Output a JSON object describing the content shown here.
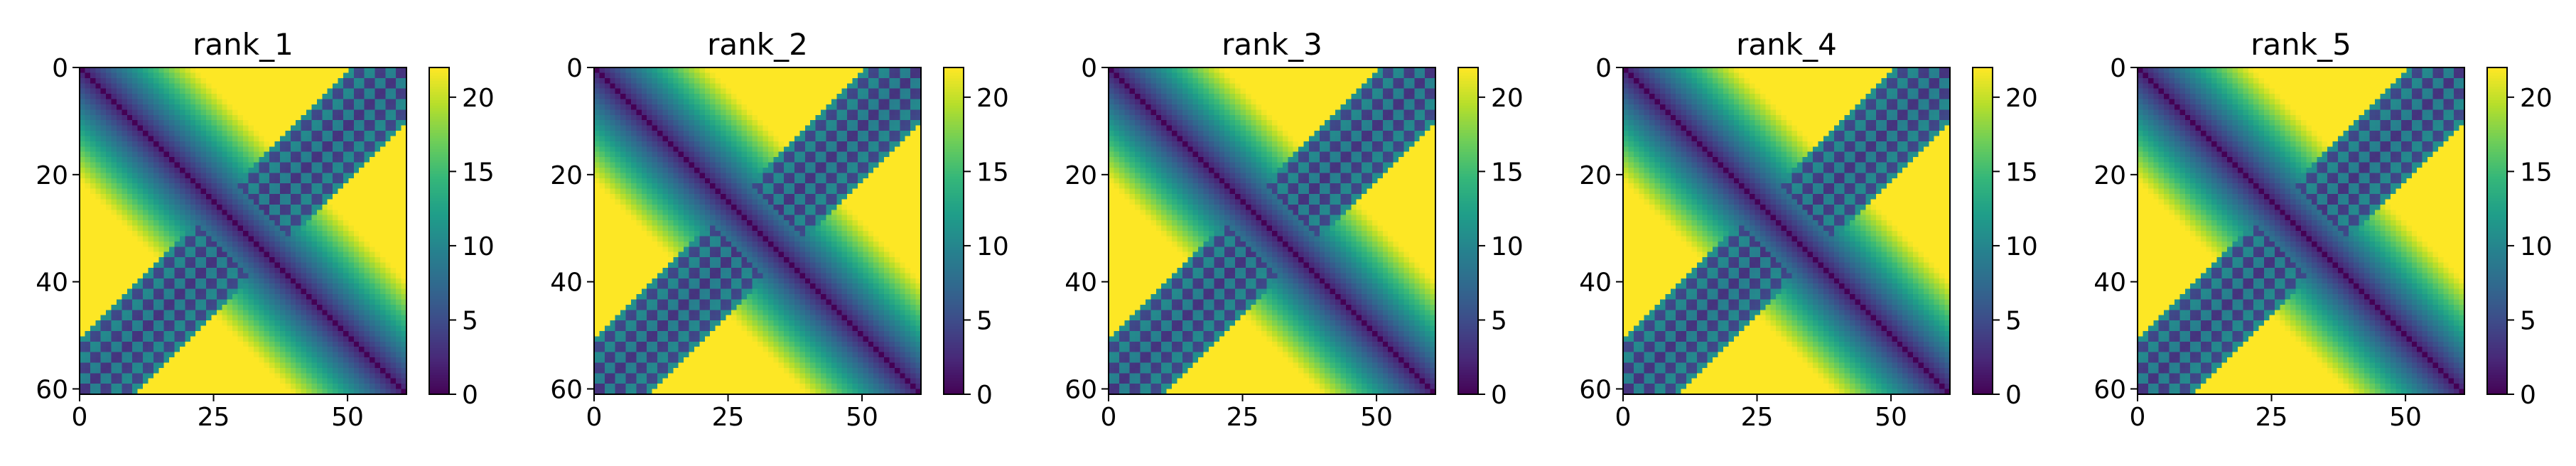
{
  "chart_data": [
    {
      "type": "heatmap",
      "title": "rank_1",
      "n": 62,
      "xlim": [
        0,
        61
      ],
      "ylim": [
        61,
        0
      ],
      "xticks": [
        0,
        25,
        50
      ],
      "yticks": [
        0,
        20,
        40,
        60
      ],
      "colorbar": {
        "vmin": 0,
        "vmax": 22,
        "ticks": [
          0,
          5,
          10,
          15,
          20
        ],
        "colormap": "viridis"
      },
      "xlabel": "",
      "ylabel": ""
    },
    {
      "type": "heatmap",
      "title": "rank_2",
      "n": 62,
      "xlim": [
        0,
        61
      ],
      "ylim": [
        61,
        0
      ],
      "xticks": [
        0,
        25,
        50
      ],
      "yticks": [
        0,
        20,
        40,
        60
      ],
      "colorbar": {
        "vmin": 0,
        "vmax": 22,
        "ticks": [
          0,
          5,
          10,
          15,
          20
        ],
        "colormap": "viridis"
      },
      "xlabel": "",
      "ylabel": ""
    },
    {
      "type": "heatmap",
      "title": "rank_3",
      "n": 62,
      "xlim": [
        0,
        61
      ],
      "ylim": [
        61,
        0
      ],
      "xticks": [
        0,
        25,
        50
      ],
      "yticks": [
        0,
        20,
        40,
        60
      ],
      "colorbar": {
        "vmin": 0,
        "vmax": 22,
        "ticks": [
          0,
          5,
          10,
          15,
          20
        ],
        "colormap": "viridis"
      },
      "xlabel": "",
      "ylabel": ""
    },
    {
      "type": "heatmap",
      "title": "rank_4",
      "n": 62,
      "xlim": [
        0,
        61
      ],
      "ylim": [
        61,
        0
      ],
      "xticks": [
        0,
        25,
        50
      ],
      "yticks": [
        0,
        20,
        40,
        60
      ],
      "colorbar": {
        "vmin": 0,
        "vmax": 22,
        "ticks": [
          0,
          5,
          10,
          15,
          20
        ],
        "colormap": "viridis"
      },
      "xlabel": "",
      "ylabel": ""
    },
    {
      "type": "heatmap",
      "title": "rank_5",
      "n": 62,
      "xlim": [
        0,
        61
      ],
      "ylim": [
        61,
        0
      ],
      "xticks": [
        0,
        25,
        50
      ],
      "yticks": [
        0,
        20,
        40,
        60
      ],
      "colorbar": {
        "vmin": 0,
        "vmax": 22,
        "ticks": [
          0,
          5,
          10,
          15,
          20
        ],
        "colormap": "viridis"
      },
      "xlabel": "",
      "ylabel": ""
    }
  ],
  "colors": {
    "viridis_stops": [
      "#440154",
      "#482878",
      "#3e4a89",
      "#31688e",
      "#26828e",
      "#1f9e89",
      "#35b779",
      "#6ece58",
      "#b5de2b",
      "#fde725"
    ],
    "axis": "#000000",
    "background": "#ffffff"
  }
}
